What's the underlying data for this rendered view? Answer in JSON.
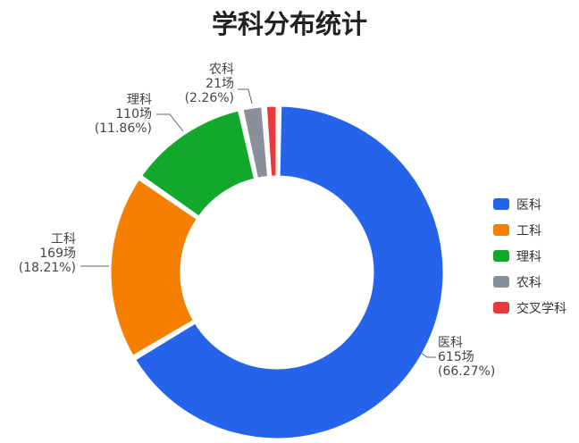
{
  "chart_data": {
    "type": "pie",
    "variant": "donut",
    "title": "学科分布统计",
    "unit": "场",
    "legend_position": "right",
    "slices": [
      {
        "name": "医科",
        "value": 615,
        "percent": "66.27%",
        "color": "#2563eb"
      },
      {
        "name": "工科",
        "value": 169,
        "percent": "18.21%",
        "color": "#f77f00"
      },
      {
        "name": "理科",
        "value": 110,
        "percent": "11.86%",
        "color": "#12a82b"
      },
      {
        "name": "农科",
        "value": 21,
        "percent": "2.26%",
        "color": "#8a909b"
      },
      {
        "name": "交叉学科",
        "value": 13,
        "percent": "",
        "color": "#e83a3a"
      }
    ]
  }
}
